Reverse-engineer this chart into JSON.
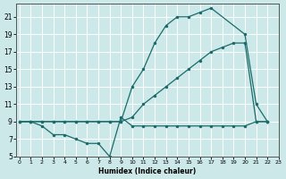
{
  "bg_color": "#cce8e8",
  "grid_color": "#ffffff",
  "line_color": "#1a6b6b",
  "xlabel": "Humidex (Indice chaleur)",
  "ylim": [
    5,
    22.5
  ],
  "xlim": [
    -0.3,
    23
  ],
  "yticks": [
    5,
    7,
    9,
    11,
    13,
    15,
    17,
    19,
    21
  ],
  "xticks": [
    0,
    1,
    2,
    3,
    4,
    5,
    6,
    7,
    8,
    9,
    10,
    11,
    12,
    13,
    14,
    15,
    16,
    17,
    18,
    19,
    20,
    21,
    22,
    23
  ],
  "line1_x": [
    0,
    1,
    2,
    3,
    4,
    5,
    6,
    7,
    8,
    9,
    10,
    11,
    12,
    13,
    14,
    15,
    16,
    17,
    20,
    21,
    22
  ],
  "line1_y": [
    9,
    9,
    9,
    9,
    9,
    9,
    9,
    9,
    9,
    9,
    13,
    15,
    18,
    20,
    21,
    21,
    21.5,
    22,
    19,
    11,
    9
  ],
  "line2_x": [
    0,
    1,
    2,
    3,
    4,
    5,
    6,
    7,
    8,
    9,
    10,
    11,
    12,
    13,
    14,
    15,
    16,
    17,
    18,
    19,
    20,
    21,
    22
  ],
  "line2_y": [
    9,
    9,
    9,
    9,
    9,
    9,
    9,
    9,
    9,
    9,
    9.5,
    11,
    12,
    13,
    14,
    15,
    16,
    17,
    17.5,
    18,
    18,
    9,
    9
  ],
  "line3_x": [
    0,
    1,
    2,
    3,
    4,
    5,
    6,
    7,
    8,
    9,
    10,
    11,
    12,
    13,
    14,
    15,
    16,
    17,
    18,
    19,
    20,
    21,
    22
  ],
  "line3_y": [
    9,
    9,
    8.5,
    7.5,
    7.5,
    7,
    6.5,
    6.5,
    5,
    9.5,
    8.5,
    8.5,
    8.5,
    8.5,
    8.5,
    8.5,
    8.5,
    8.5,
    8.5,
    8.5,
    8.5,
    9,
    9
  ]
}
